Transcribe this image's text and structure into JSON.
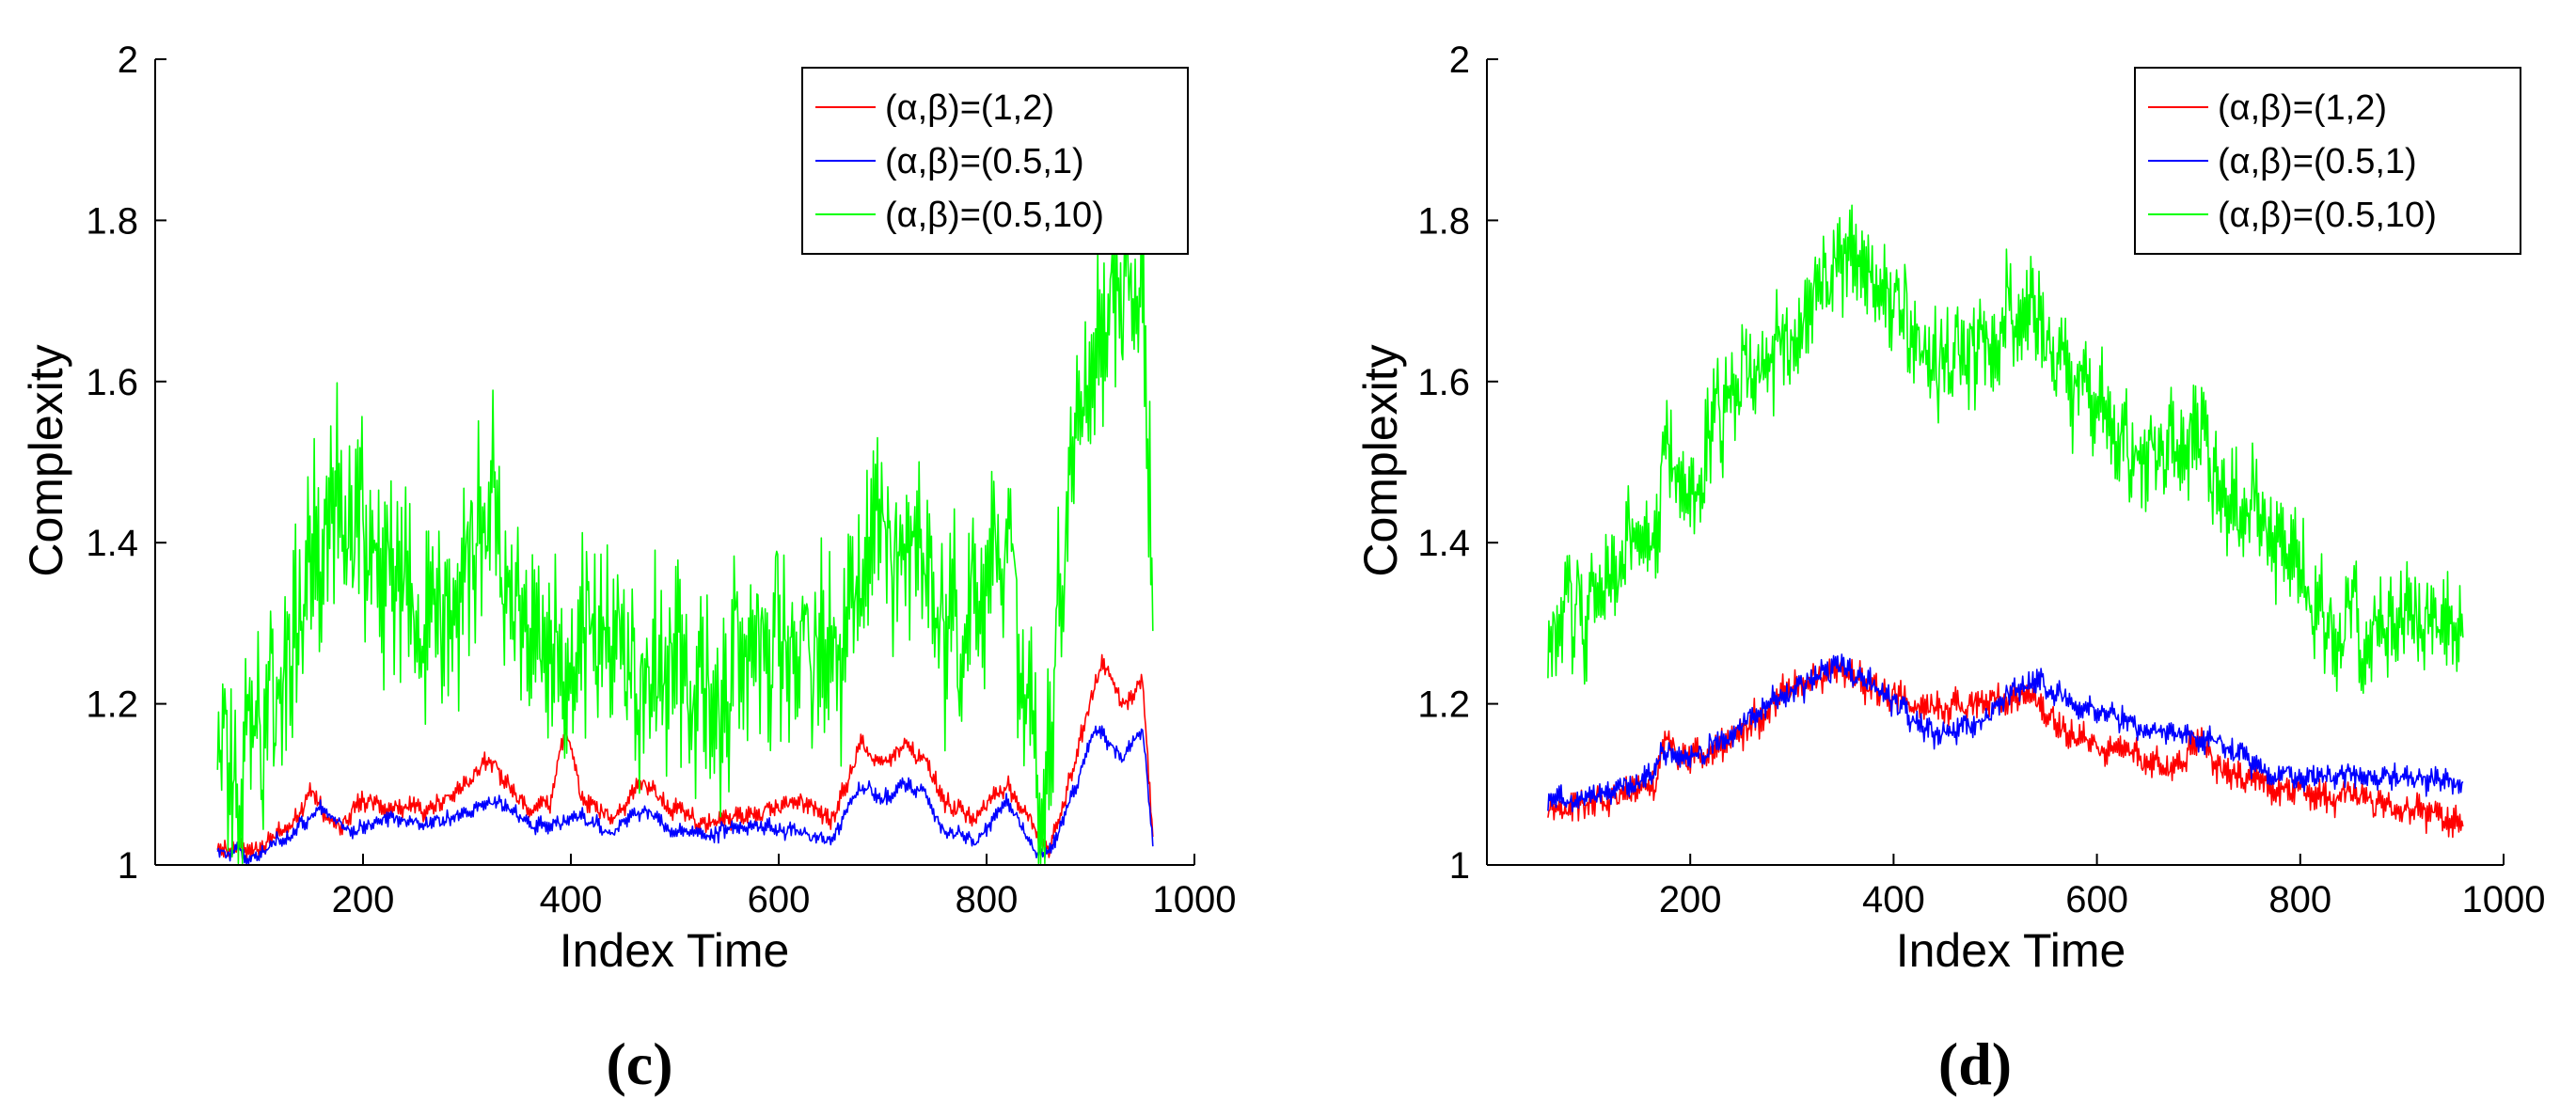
{
  "chart_data": [
    {
      "type": "line",
      "panel_label": "(c)",
      "xlabel": "Index Time",
      "ylabel": "Complexity",
      "xlim": [
        0,
        1000
      ],
      "ylim": [
        1,
        2
      ],
      "xticks": [
        "200",
        "400",
        "600",
        "800",
        "1000"
      ],
      "yticks": [
        "1",
        "1.2",
        "1.4",
        "1.6",
        "1.8",
        "2"
      ],
      "legend_position": "top-right",
      "x_range": [
        60,
        960
      ],
      "series": [
        {
          "name": "(α,β)=(1,2)",
          "color": "#ff0000",
          "keypoints": [
            [
              60,
              1.02
            ],
            [
              100,
              1.02
            ],
            [
              130,
              1.05
            ],
            [
              150,
              1.09
            ],
            [
              175,
              1.05
            ],
            [
              200,
              1.08
            ],
            [
              230,
              1.07
            ],
            [
              260,
              1.07
            ],
            [
              290,
              1.09
            ],
            [
              320,
              1.13
            ],
            [
              340,
              1.1
            ],
            [
              360,
              1.07
            ],
            [
              380,
              1.08
            ],
            [
              395,
              1.17
            ],
            [
              410,
              1.08
            ],
            [
              440,
              1.06
            ],
            [
              470,
              1.1
            ],
            [
              500,
              1.07
            ],
            [
              530,
              1.05
            ],
            [
              560,
              1.06
            ],
            [
              600,
              1.07
            ],
            [
              630,
              1.08
            ],
            [
              650,
              1.05
            ],
            [
              680,
              1.15
            ],
            [
              700,
              1.12
            ],
            [
              720,
              1.15
            ],
            [
              740,
              1.13
            ],
            [
              760,
              1.08
            ],
            [
              790,
              1.06
            ],
            [
              820,
              1.1
            ],
            [
              845,
              1.05
            ],
            [
              860,
              1.02
            ],
            [
              880,
              1.1
            ],
            [
              910,
              1.25
            ],
            [
              930,
              1.2
            ],
            [
              950,
              1.23
            ],
            [
              960,
              1.04
            ]
          ],
          "noise": 0.015
        },
        {
          "name": "(α,β)=(0.5,1)",
          "color": "#0000ff",
          "keypoints": [
            [
              60,
              1.02
            ],
            [
              100,
              1.01
            ],
            [
              130,
              1.04
            ],
            [
              160,
              1.07
            ],
            [
              190,
              1.04
            ],
            [
              220,
              1.06
            ],
            [
              260,
              1.05
            ],
            [
              290,
              1.06
            ],
            [
              320,
              1.08
            ],
            [
              340,
              1.07
            ],
            [
              360,
              1.05
            ],
            [
              390,
              1.05
            ],
            [
              410,
              1.06
            ],
            [
              440,
              1.04
            ],
            [
              470,
              1.07
            ],
            [
              500,
              1.04
            ],
            [
              540,
              1.04
            ],
            [
              580,
              1.05
            ],
            [
              620,
              1.04
            ],
            [
              650,
              1.03
            ],
            [
              680,
              1.1
            ],
            [
              700,
              1.08
            ],
            [
              720,
              1.1
            ],
            [
              740,
              1.09
            ],
            [
              760,
              1.04
            ],
            [
              790,
              1.03
            ],
            [
              820,
              1.08
            ],
            [
              845,
              1.02
            ],
            [
              860,
              1.01
            ],
            [
              880,
              1.08
            ],
            [
              905,
              1.17
            ],
            [
              930,
              1.13
            ],
            [
              950,
              1.17
            ],
            [
              960,
              1.03
            ]
          ],
          "noise": 0.012
        },
        {
          "name": "(α,β)=(0.5,10)",
          "color": "#00ff00",
          "keypoints": [
            [
              60,
              1.1
            ],
            [
              90,
              1.16
            ],
            [
              120,
              1.22
            ],
            [
              150,
              1.35
            ],
            [
              170,
              1.45
            ],
            [
              190,
              1.42
            ],
            [
              210,
              1.35
            ],
            [
              240,
              1.33
            ],
            [
              260,
              1.3
            ],
            [
              290,
              1.35
            ],
            [
              320,
              1.45
            ],
            [
              340,
              1.38
            ],
            [
              360,
              1.3
            ],
            [
              380,
              1.27
            ],
            [
              400,
              1.25
            ],
            [
              420,
              1.28
            ],
            [
              450,
              1.27
            ],
            [
              480,
              1.24
            ],
            [
              510,
              1.22
            ],
            [
              540,
              1.23
            ],
            [
              570,
              1.24
            ],
            [
              600,
              1.3
            ],
            [
              630,
              1.28
            ],
            [
              660,
              1.25
            ],
            [
              680,
              1.38
            ],
            [
              700,
              1.42
            ],
            [
              720,
              1.35
            ],
            [
              740,
              1.42
            ],
            [
              760,
              1.28
            ],
            [
              780,
              1.3
            ],
            [
              800,
              1.35
            ],
            [
              820,
              1.38
            ],
            [
              840,
              1.2
            ],
            [
              855,
              1.07
            ],
            [
              870,
              1.3
            ],
            [
              890,
              1.55
            ],
            [
              910,
              1.72
            ],
            [
              930,
              1.68
            ],
            [
              950,
              1.75
            ],
            [
              960,
              1.3
            ]
          ],
          "noise": 0.15
        }
      ]
    },
    {
      "type": "line",
      "panel_label": "(d)",
      "xlabel": "Index Time",
      "ylabel": "Complexity",
      "xlim": [
        0,
        1000
      ],
      "ylim": [
        1,
        2
      ],
      "xticks": [
        "200",
        "400",
        "600",
        "800",
        "1000"
      ],
      "yticks": [
        "1",
        "1.2",
        "1.4",
        "1.6",
        "1.8",
        "2"
      ],
      "legend_position": "top-right",
      "x_range": [
        60,
        960
      ],
      "series": [
        {
          "name": "(α,β)=(1,2)",
          "color": "#ff0000",
          "keypoints": [
            [
              60,
              1.07
            ],
            [
              100,
              1.08
            ],
            [
              140,
              1.09
            ],
            [
              165,
              1.1
            ],
            [
              175,
              1.15
            ],
            [
              200,
              1.13
            ],
            [
              240,
              1.15
            ],
            [
              280,
              1.2
            ],
            [
              320,
              1.23
            ],
            [
              350,
              1.24
            ],
            [
              380,
              1.22
            ],
            [
              420,
              1.2
            ],
            [
              450,
              1.19
            ],
            [
              480,
              1.2
            ],
            [
              510,
              1.21
            ],
            [
              530,
              1.21
            ],
            [
              560,
              1.17
            ],
            [
              600,
              1.15
            ],
            [
              640,
              1.13
            ],
            [
              680,
              1.12
            ],
            [
              700,
              1.16
            ],
            [
              720,
              1.12
            ],
            [
              760,
              1.1
            ],
            [
              800,
              1.09
            ],
            [
              850,
              1.08
            ],
            [
              900,
              1.07
            ],
            [
              960,
              1.06
            ]
          ],
          "noise": 0.025
        },
        {
          "name": "(α,β)=(0.5,1)",
          "color": "#0000ff",
          "keypoints": [
            [
              60,
              1.08
            ],
            [
              100,
              1.09
            ],
            [
              140,
              1.1
            ],
            [
              165,
              1.12
            ],
            [
              175,
              1.14
            ],
            [
              200,
              1.13
            ],
            [
              240,
              1.16
            ],
            [
              280,
              1.2
            ],
            [
              320,
              1.23
            ],
            [
              350,
              1.25
            ],
            [
              380,
              1.22
            ],
            [
              410,
              1.19
            ],
            [
              440,
              1.16
            ],
            [
              470,
              1.17
            ],
            [
              500,
              1.19
            ],
            [
              520,
              1.22
            ],
            [
              540,
              1.23
            ],
            [
              570,
              1.21
            ],
            [
              600,
              1.19
            ],
            [
              640,
              1.17
            ],
            [
              680,
              1.16
            ],
            [
              720,
              1.15
            ],
            [
              760,
              1.12
            ],
            [
              800,
              1.11
            ],
            [
              850,
              1.11
            ],
            [
              900,
              1.11
            ],
            [
              960,
              1.1
            ]
          ],
          "noise": 0.02
        },
        {
          "name": "(α,β)=(0.5,10)",
          "color": "#00ff00",
          "keypoints": [
            [
              60,
              1.3
            ],
            [
              100,
              1.32
            ],
            [
              140,
              1.38
            ],
            [
              165,
              1.4
            ],
            [
              175,
              1.52
            ],
            [
              200,
              1.46
            ],
            [
              230,
              1.55
            ],
            [
              260,
              1.62
            ],
            [
              300,
              1.66
            ],
            [
              340,
              1.72
            ],
            [
              360,
              1.75
            ],
            [
              390,
              1.7
            ],
            [
              420,
              1.66
            ],
            [
              460,
              1.62
            ],
            [
              490,
              1.65
            ],
            [
              520,
              1.7
            ],
            [
              540,
              1.68
            ],
            [
              560,
              1.62
            ],
            [
              600,
              1.57
            ],
            [
              640,
              1.5
            ],
            [
              680,
              1.52
            ],
            [
              700,
              1.55
            ],
            [
              720,
              1.47
            ],
            [
              760,
              1.42
            ],
            [
              800,
              1.37
            ],
            [
              830,
              1.3
            ],
            [
              860,
              1.3
            ],
            [
              900,
              1.3
            ],
            [
              960,
              1.3
            ]
          ],
          "noise": 0.08
        }
      ]
    }
  ]
}
